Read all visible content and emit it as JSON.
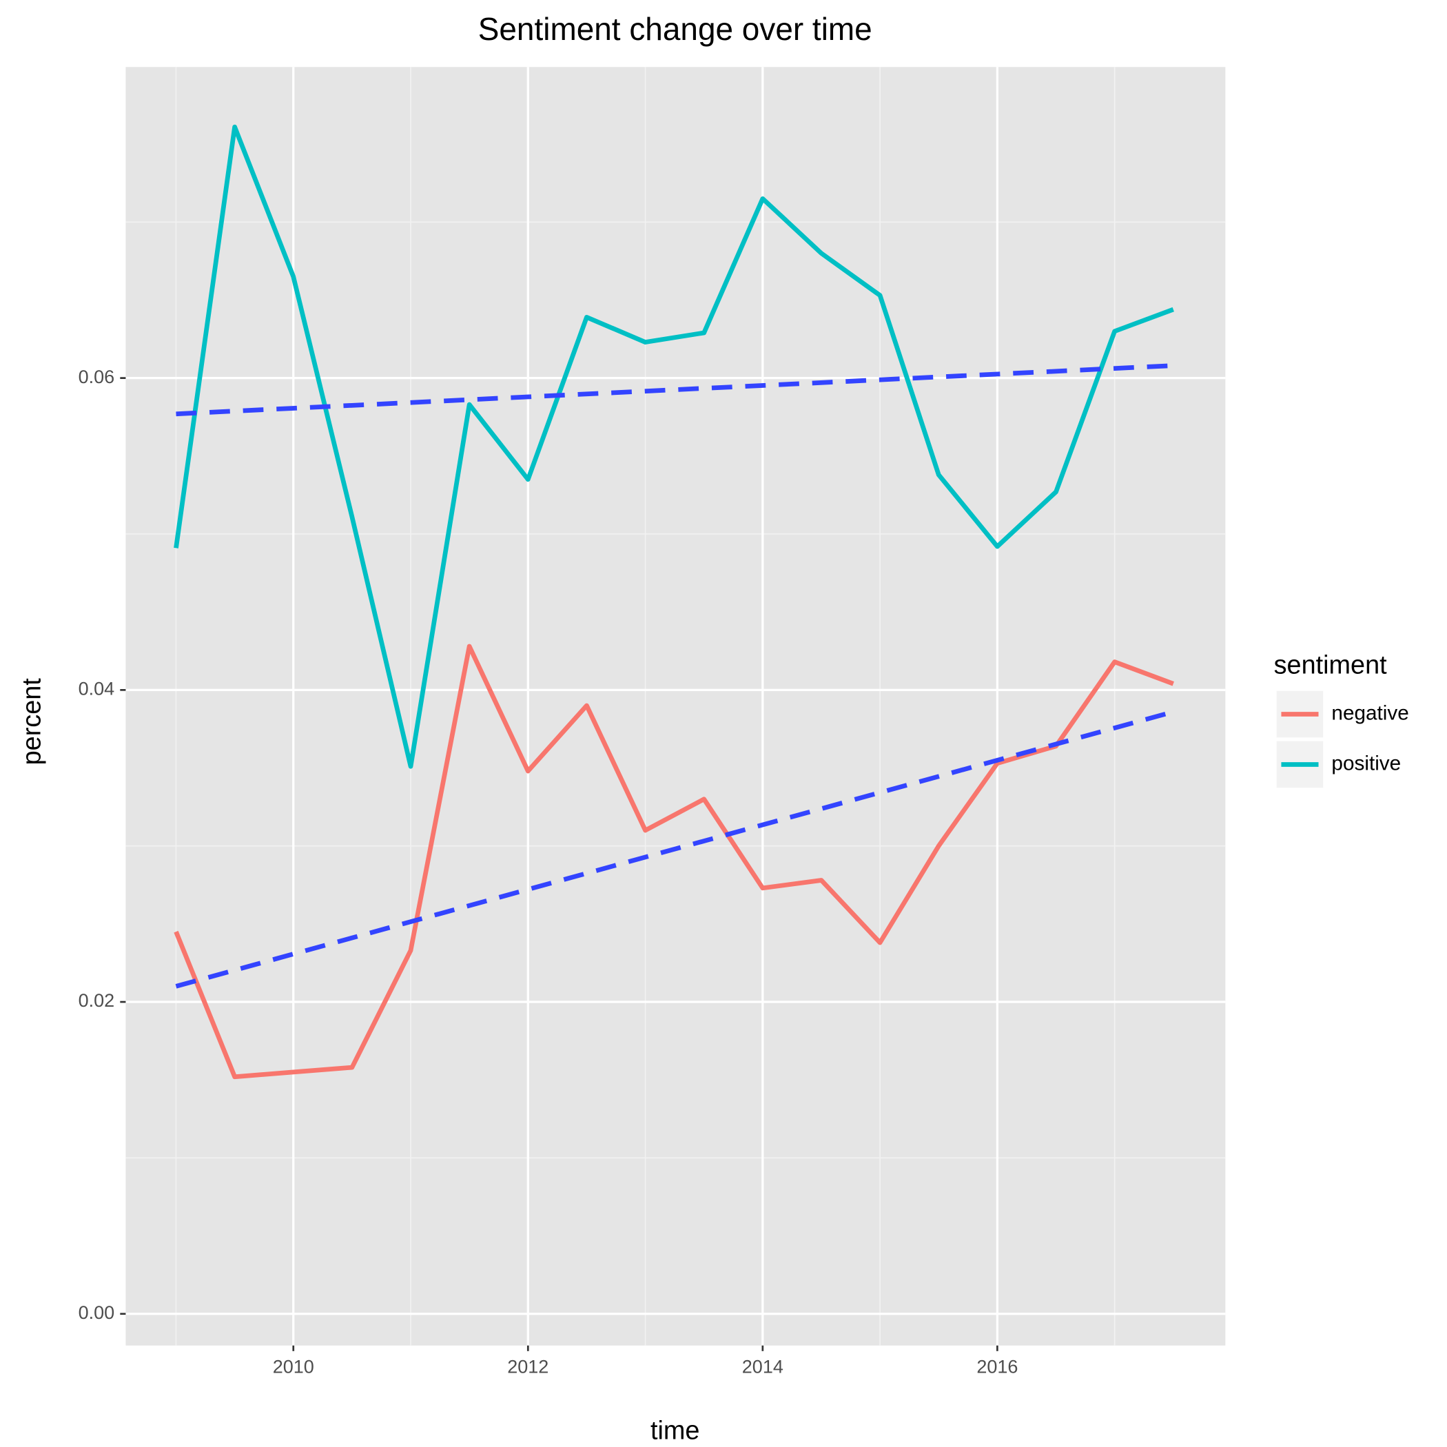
{
  "chart_data": {
    "type": "line",
    "title": "Sentiment change over time",
    "x_label": "time",
    "y_label": "percent",
    "x": [
      2009,
      2009.5,
      2010,
      2010.5,
      2011,
      2011.5,
      2012,
      2012.5,
      2013,
      2013.5,
      2014,
      2014.5,
      2015,
      2015.5,
      2016,
      2016.5,
      2017,
      2017.5
    ],
    "series": [
      {
        "name": "negative",
        "color": "#F8766D",
        "values": [
          0.0245,
          0.0152,
          0.0155,
          0.0158,
          0.0233,
          0.0428,
          0.0348,
          0.039,
          0.031,
          0.033,
          0.0273,
          0.0278,
          0.0238,
          0.03,
          0.0353,
          0.0364,
          0.0418,
          0.0404
        ]
      },
      {
        "name": "positive",
        "color": "#00BFC4",
        "values": [
          0.0491,
          0.0761,
          0.0665,
          0.0511,
          0.0351,
          0.0583,
          0.0535,
          0.0639,
          0.0623,
          0.0629,
          0.0715,
          0.068,
          0.0653,
          0.0538,
          0.0492,
          0.0527,
          0.063,
          0.0644
        ]
      }
    ],
    "trend_lines": [
      {
        "color": "#3344FF",
        "dash": true,
        "x": [
          2009,
          2017.5
        ],
        "values": [
          0.021,
          0.0386
        ]
      },
      {
        "color": "#3344FF",
        "dash": true,
        "x": [
          2009,
          2017.5
        ],
        "values": [
          0.0577,
          0.0608
        ]
      }
    ],
    "legend_title": "sentiment",
    "legend": "right",
    "xlim": [
      2008.571,
      2017.944
    ],
    "xticks": [
      2010,
      2012,
      2014,
      2016
    ],
    "ylim": [
      -0.00203,
      0.07994
    ],
    "yticks": [
      {
        "value": 0,
        "label": "0.00"
      },
      0.02,
      0.04,
      0.06
    ],
    "grid": true
  }
}
